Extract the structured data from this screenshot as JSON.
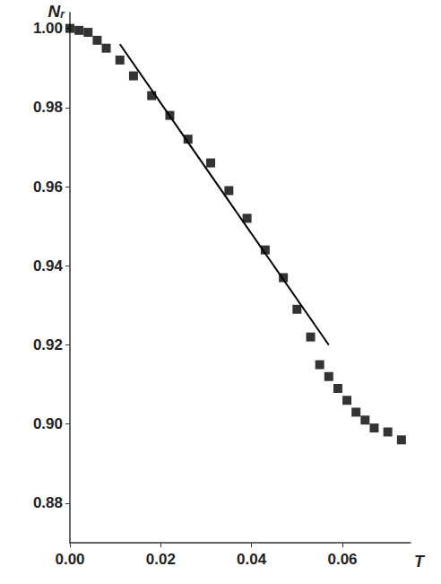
{
  "chart_data": {
    "type": "scatter",
    "x_label": "T",
    "y_label": {
      "text": "N",
      "subscript": "r"
    },
    "xlim": [
      0,
      0.075
    ],
    "ylim": [
      0.87,
      1.004
    ],
    "xticks": [
      {
        "value": 0,
        "label": "0.00"
      },
      0.02,
      0.04,
      0.06
    ],
    "yticks": [
      0.88,
      {
        "value": 0.9,
        "label": "0.90"
      },
      0.92,
      0.94,
      0.96,
      0.98,
      {
        "value": 1.0,
        "label": "1.00"
      }
    ],
    "grid": false,
    "series": [
      {
        "type": "scatter",
        "marker": "square",
        "color": "#000000",
        "x": [
          0.0,
          0.002,
          0.004,
          0.006,
          0.008,
          0.011,
          0.014,
          0.018,
          0.022,
          0.026,
          0.031,
          0.035,
          0.039,
          0.043,
          0.047,
          0.05,
          0.053,
          0.055,
          0.057,
          0.059,
          0.061,
          0.063,
          0.065,
          0.067,
          0.07,
          0.073
        ],
        "values": [
          1.0,
          0.9995,
          0.999,
          0.997,
          0.995,
          0.992,
          0.988,
          0.983,
          0.978,
          0.972,
          0.966,
          0.959,
          0.952,
          0.944,
          0.937,
          0.929,
          0.922,
          0.915,
          0.912,
          0.909,
          0.906,
          0.903,
          0.901,
          0.899,
          0.898,
          0.896
        ]
      },
      {
        "type": "line",
        "line_style": "solid",
        "color": "#000000",
        "x": [
          0.011,
          0.057
        ],
        "values": [
          0.996,
          0.92
        ]
      }
    ]
  }
}
